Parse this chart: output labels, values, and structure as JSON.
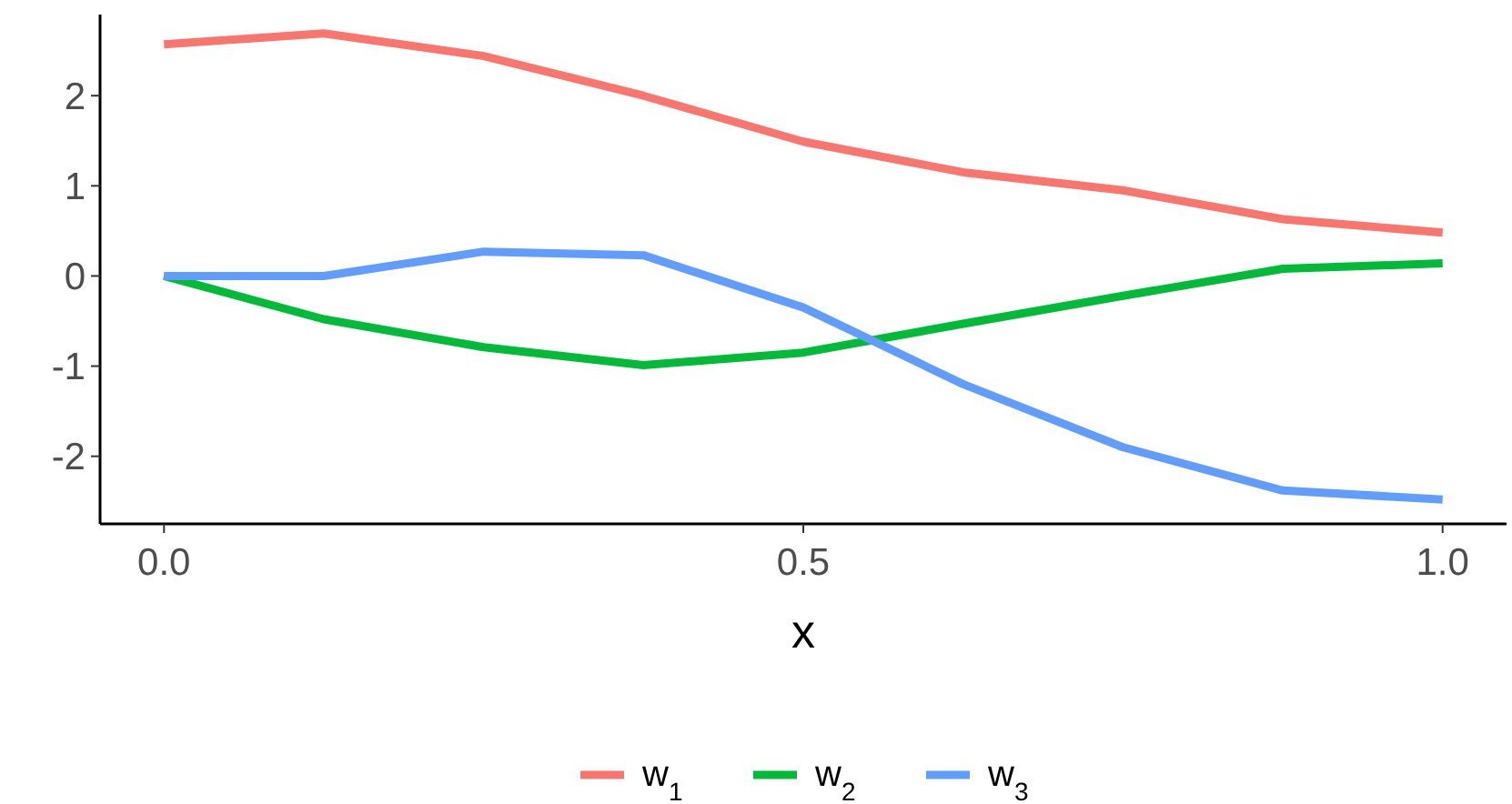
{
  "chart_data": {
    "type": "line",
    "xlabel": "x",
    "x": [
      0,
      0.125,
      0.25,
      0.375,
      0.5,
      0.625,
      0.75,
      0.875,
      1
    ],
    "series": [
      {
        "name": "w$_{1}$",
        "color": "#f8766d",
        "values": [
          2.57,
          2.69,
          2.44,
          2.0,
          1.49,
          1.15,
          0.95,
          0.63,
          0.48
        ]
      },
      {
        "name": "w$_{2}$",
        "color": "#00ba38",
        "values": [
          0,
          -0.48,
          -0.79,
          -0.99,
          -0.85,
          -0.53,
          -0.22,
          0.08,
          0.14
        ]
      },
      {
        "name": "w$_{3}$",
        "color": "#619cff",
        "values": [
          0,
          0,
          0.27,
          0.23,
          -0.35,
          -1.2,
          -1.9,
          -2.38,
          -2.48
        ]
      }
    ],
    "xlim": [
      -0.05,
      1.05
    ],
    "xticks": [
      {
        "value": 0,
        "label": "0.0"
      },
      {
        "value": 0.5,
        "label": "0.5"
      },
      {
        "value": 1,
        "label": "1.0"
      }
    ],
    "ylim": [
      -2.75,
      2.9
    ],
    "yticks": [
      -2,
      -1,
      0,
      1,
      2
    ],
    "grid": false,
    "legend": "bottom"
  }
}
